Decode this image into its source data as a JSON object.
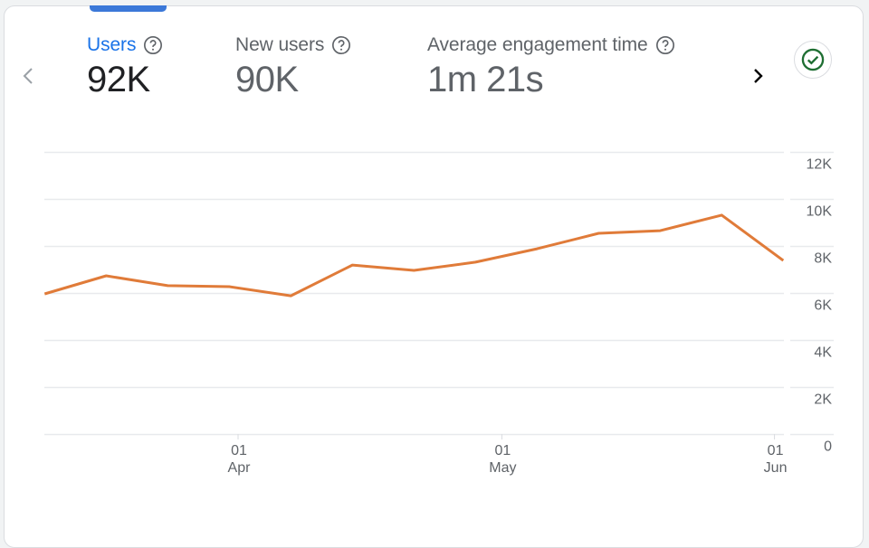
{
  "metrics": [
    {
      "label": "Users",
      "value": "92K",
      "active": true,
      "help_icon": "help-circle-icon"
    },
    {
      "label": "New users",
      "value": "90K",
      "active": false,
      "help_icon": "help-circle-icon"
    },
    {
      "label": "Average engagement time",
      "value": "1m 21s",
      "active": false,
      "help_icon": "help-circle-icon"
    }
  ],
  "navigation": {
    "prev_icon": "chevron-left-icon",
    "next_icon": "chevron-right-icon"
  },
  "status": {
    "icon": "check-circle-icon",
    "color": "#1e7e34"
  },
  "colors": {
    "accent": "#1a73e8",
    "series_line": "#e07b39",
    "gridline": "#e8eaed"
  },
  "chart_data": {
    "type": "line",
    "title": "",
    "xlabel": "",
    "ylabel": "",
    "x": [
      "Mar 10",
      "Mar 17",
      "Mar 24",
      "Mar 31",
      "Apr 7",
      "Apr 14",
      "Apr 21",
      "Apr 28",
      "May 5",
      "May 12",
      "May 19",
      "May 26",
      "Jun 2"
    ],
    "x_day_offsets": [
      -22,
      -15,
      -8,
      -1,
      6,
      13,
      20,
      27,
      34,
      41,
      48,
      55,
      62
    ],
    "series": [
      {
        "name": "Users",
        "values": [
          5960,
          6730,
          6310,
          6270,
          5880,
          7190,
          6960,
          7310,
          7880,
          8540,
          8650,
          9310,
          7380
        ]
      }
    ],
    "ylim": [
      0,
      12000
    ],
    "y_ticks": [
      {
        "value": 0,
        "label": "0"
      },
      {
        "value": 2000,
        "label": "2K"
      },
      {
        "value": 4000,
        "label": "4K"
      },
      {
        "value": 6000,
        "label": "6K"
      },
      {
        "value": 8000,
        "label": "8K"
      },
      {
        "value": 10000,
        "label": "10K"
      },
      {
        "value": 12000,
        "label": "12K"
      }
    ],
    "x_ticks": [
      {
        "day_offset": 0,
        "day": "01",
        "month": "Apr"
      },
      {
        "day_offset": 30,
        "day": "01",
        "month": "May"
      },
      {
        "day_offset": 61,
        "day": "01",
        "month": "Jun"
      }
    ],
    "y_axis_position": "right",
    "grid": true,
    "legend": "none"
  }
}
